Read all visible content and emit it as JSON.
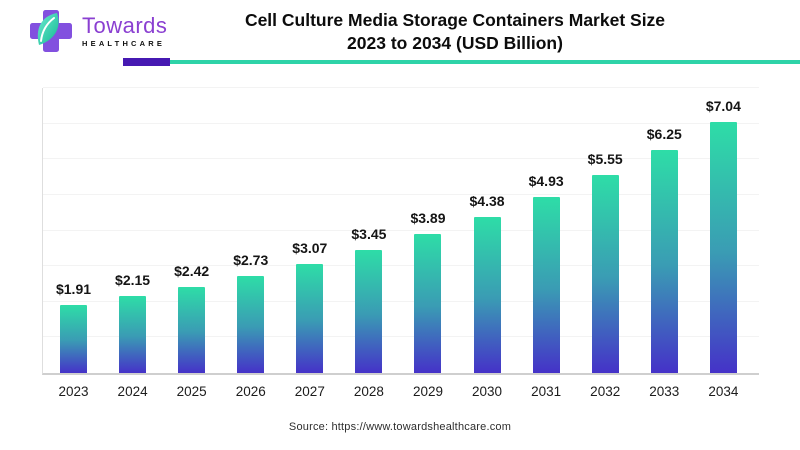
{
  "brand": {
    "name": "Towards",
    "subname": "HEALTHCARE",
    "name_color": "#8a3fd1",
    "cross_color": "#8250df",
    "leaf_color_light": "#5fe6c3",
    "leaf_color_dark": "#12b992"
  },
  "header": {
    "title_line1": "Cell Culture Media Storage Containers Market Size",
    "title_line2": "2023 to 2034 (USD Billion)"
  },
  "divider": {
    "purple": "#4619b2",
    "teal": "#2ed3a8"
  },
  "chart_data": {
    "type": "bar",
    "title": "Cell Culture Media Storage Containers Market Size 2023 to 2034 (USD Billion)",
    "unit": "USD Billion",
    "categories": [
      "2023",
      "2024",
      "2025",
      "2026",
      "2027",
      "2028",
      "2029",
      "2030",
      "2031",
      "2032",
      "2033",
      "2034"
    ],
    "values": [
      1.91,
      2.15,
      2.42,
      2.73,
      3.07,
      3.45,
      3.89,
      4.38,
      4.93,
      5.55,
      6.25,
      7.04
    ],
    "value_labels": [
      "$1.91",
      "$2.15",
      "$2.42",
      "$2.73",
      "$3.07",
      "$3.45",
      "$3.89",
      "$4.38",
      "$4.93",
      "$5.55",
      "$6.25",
      "$7.04"
    ],
    "ylim": [
      0,
      8
    ],
    "gridline_interval": 1,
    "grid": "horizontal-faint",
    "legend": "none",
    "bar_gradient_top": "#2edda7",
    "bar_gradient_mid": "#3a9cb4",
    "bar_gradient_bottom": "#4532c8",
    "axis_line_color": "#cfcfcf",
    "gridline_color": "#f3f3f3"
  },
  "footer": {
    "source": "Source: https://www.towardshealthcare.com"
  }
}
